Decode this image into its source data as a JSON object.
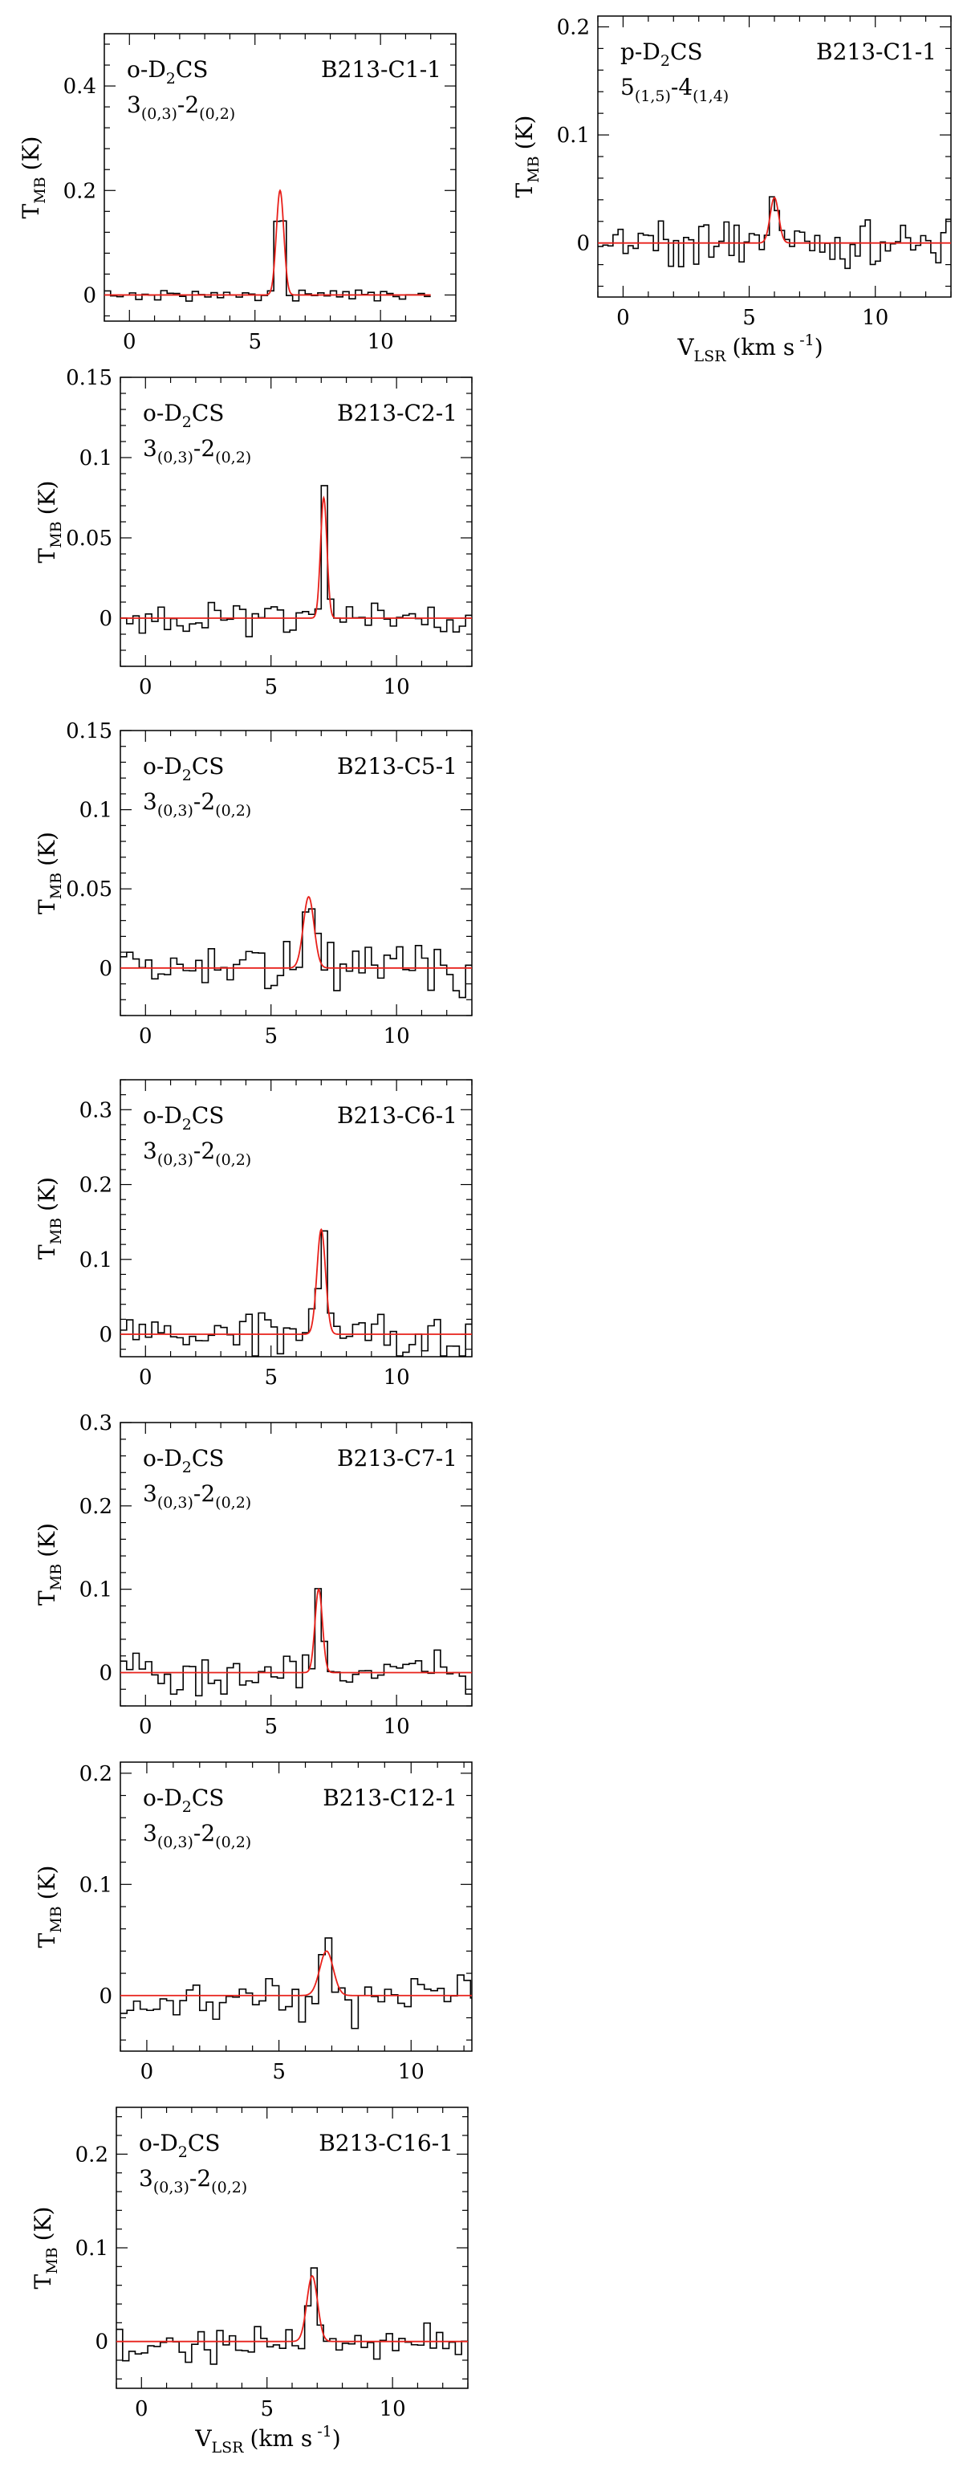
{
  "figure": {
    "y_axis_label": "T",
    "y_axis_label_sub": "MB",
    "y_axis_label_unit": "(K)",
    "x_axis_label": "V",
    "x_axis_label_sub": "LSR",
    "x_axis_label_unit": "(km s",
    "x_axis_label_exp": "-1",
    "x_axis_label_close": ")",
    "colors": {
      "spectrum": "#000000",
      "fit": "#e8201a",
      "frame": "#000000"
    }
  },
  "chart_data": [
    {
      "type": "line",
      "source": "B213-C1-1",
      "species": "o-D2CS",
      "transition": "3(0,3)-2(0,2)",
      "xlim": [
        -1,
        13
      ],
      "ylim": [
        -0.05,
        0.5
      ],
      "xticks": [
        0,
        5,
        10
      ],
      "yticks": [
        0,
        0.2,
        0.4
      ],
      "ytick_labels": [
        "0",
        "0.2",
        "0.4"
      ],
      "show_xlabel": false,
      "fit": {
        "amplitude": 0.2,
        "center": 6.0,
        "fwhm": 0.35
      },
      "noise": 0.006,
      "channel_width": 0.25,
      "x_end": 12.0,
      "series": [
        {
          "name": "spectrum"
        },
        {
          "name": "Gaussian fit"
        }
      ]
    },
    {
      "type": "line",
      "source": "B213-C1-1",
      "species": "p-D2CS",
      "transition": "5(1,5)-4(1,4)",
      "xlim": [
        -1,
        13
      ],
      "ylim": [
        -0.05,
        0.21
      ],
      "xticks": [
        0,
        5,
        10
      ],
      "yticks": [
        0,
        0.1,
        0.2
      ],
      "ytick_labels": [
        "0",
        "0.1",
        "0.2"
      ],
      "show_xlabel": true,
      "fit": {
        "amplitude": 0.042,
        "center": 6.0,
        "fwhm": 0.4
      },
      "noise": 0.014,
      "channel_width": 0.2,
      "x_end": 13.0,
      "series": [
        {
          "name": "spectrum"
        },
        {
          "name": "Gaussian fit"
        }
      ]
    },
    {
      "type": "line",
      "source": "B213-C2-1",
      "species": "o-D2CS",
      "transition": "3(0,3)-2(0,2)",
      "xlim": [
        -1,
        13
      ],
      "ylim": [
        -0.03,
        0.15
      ],
      "xticks": [
        0,
        5,
        10
      ],
      "yticks": [
        0,
        0.05,
        0.1,
        0.15
      ],
      "ytick_labels": [
        "0",
        "0.05",
        "0.1",
        "0.15"
      ],
      "show_xlabel": false,
      "fit": {
        "amplitude": 0.075,
        "center": 7.1,
        "fwhm": 0.3
      },
      "noise": 0.006,
      "channel_width": 0.25,
      "x_end": 13.0,
      "series": [
        {
          "name": "spectrum"
        },
        {
          "name": "Gaussian fit"
        }
      ]
    },
    {
      "type": "line",
      "source": "B213-C5-1",
      "species": "o-D2CS",
      "transition": "3(0,3)-2(0,2)",
      "xlim": [
        -1,
        13
      ],
      "ylim": [
        -0.03,
        0.15
      ],
      "xticks": [
        0,
        5,
        10
      ],
      "yticks": [
        0,
        0.05,
        0.1,
        0.15
      ],
      "ytick_labels": [
        "0",
        "0.05",
        "0.1",
        "0.15"
      ],
      "show_xlabel": false,
      "fit": {
        "amplitude": 0.045,
        "center": 6.5,
        "fwhm": 0.5
      },
      "noise": 0.01,
      "channel_width": 0.25,
      "x_end": 13.0,
      "series": [
        {
          "name": "spectrum"
        },
        {
          "name": "Gaussian fit"
        }
      ]
    },
    {
      "type": "line",
      "source": "B213-C6-1",
      "species": "o-D2CS",
      "transition": "3(0,3)-2(0,2)",
      "xlim": [
        -1,
        13
      ],
      "ylim": [
        -0.03,
        0.34
      ],
      "xticks": [
        0,
        5,
        10
      ],
      "yticks": [
        0,
        0.1,
        0.2,
        0.3
      ],
      "ytick_labels": [
        "0",
        "0.1",
        "0.2",
        "0.3"
      ],
      "show_xlabel": false,
      "fit": {
        "amplitude": 0.14,
        "center": 7.0,
        "fwhm": 0.4
      },
      "noise": 0.02,
      "channel_width": 0.25,
      "x_end": 13.0,
      "series": [
        {
          "name": "spectrum"
        },
        {
          "name": "Gaussian fit"
        }
      ]
    },
    {
      "type": "line",
      "source": "B213-C7-1",
      "species": "o-D2CS",
      "transition": "3(0,3)-2(0,2)",
      "xlim": [
        -1,
        13
      ],
      "ylim": [
        -0.04,
        0.3
      ],
      "xticks": [
        0,
        5,
        10
      ],
      "yticks": [
        0,
        0.1,
        0.2,
        0.3
      ],
      "ytick_labels": [
        "0",
        "0.1",
        "0.2",
        "0.3"
      ],
      "show_xlabel": false,
      "fit": {
        "amplitude": 0.1,
        "center": 6.9,
        "fwhm": 0.35
      },
      "noise": 0.015,
      "channel_width": 0.25,
      "x_end": 13.0,
      "series": [
        {
          "name": "spectrum"
        },
        {
          "name": "Gaussian fit"
        }
      ]
    },
    {
      "type": "line",
      "source": "B213-C12-1",
      "species": "o-D2CS",
      "transition": "3(0,3)-2(0,2)",
      "xlim": [
        -1,
        12.3
      ],
      "ylim": [
        -0.05,
        0.21
      ],
      "xticks": [
        0,
        5,
        10
      ],
      "yticks": [
        0,
        0.1,
        0.2
      ],
      "ytick_labels": [
        "0",
        "0.1",
        "0.2"
      ],
      "show_xlabel": false,
      "fit": {
        "amplitude": 0.04,
        "center": 6.8,
        "fwhm": 0.6
      },
      "noise": 0.013,
      "channel_width": 0.25,
      "x_end": 12.3,
      "series": [
        {
          "name": "spectrum"
        },
        {
          "name": "Gaussian fit"
        }
      ]
    },
    {
      "type": "line",
      "source": "B213-C16-1",
      "species": "o-D2CS",
      "transition": "3(0,3)-2(0,2)",
      "xlim": [
        -1,
        13
      ],
      "ylim": [
        -0.05,
        0.25
      ],
      "xticks": [
        0,
        5,
        10
      ],
      "yticks": [
        0,
        0.1,
        0.2
      ],
      "ytick_labels": [
        "0",
        "0.1",
        "0.2"
      ],
      "show_xlabel": true,
      "fit": {
        "amplitude": 0.07,
        "center": 6.8,
        "fwhm": 0.5
      },
      "noise": 0.012,
      "channel_width": 0.25,
      "x_end": 13.0,
      "series": [
        {
          "name": "spectrum"
        },
        {
          "name": "Gaussian fit"
        }
      ]
    }
  ]
}
